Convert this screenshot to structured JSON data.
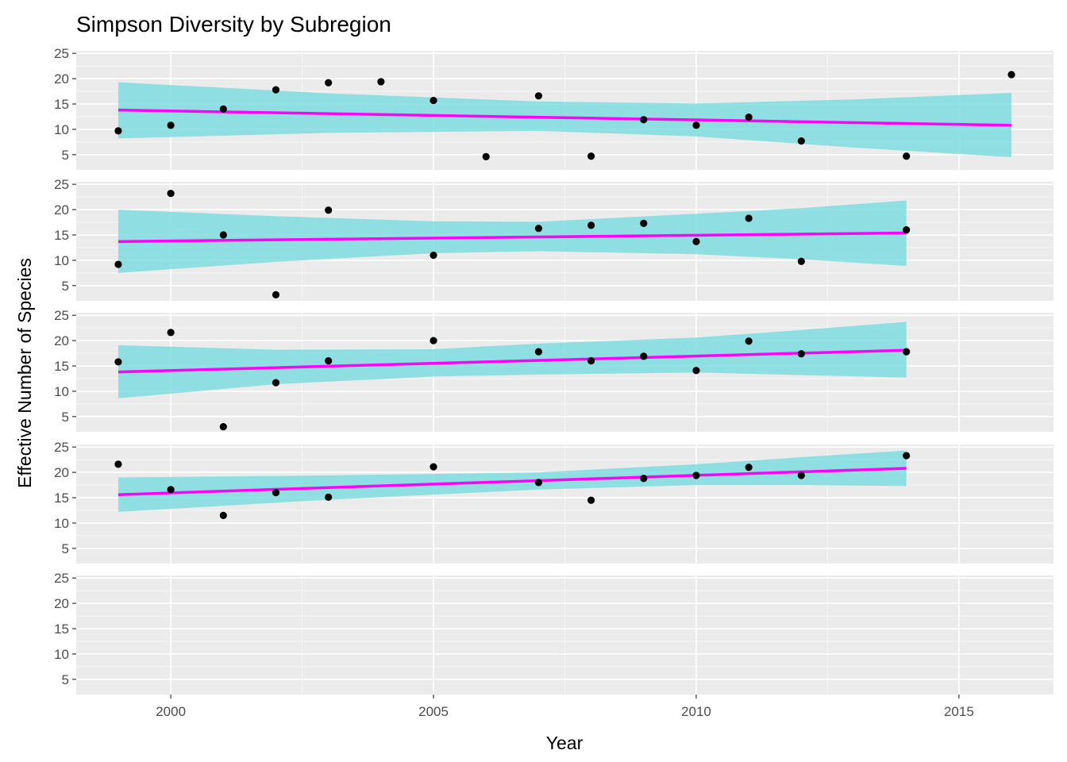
{
  "chart_data": {
    "type": "scatter",
    "title": "Simpson Diversity by Subregion",
    "xlabel": "Year",
    "ylabel": "Effective Number of Species",
    "xlim": [
      1998.2,
      2016.8
    ],
    "ylim": [
      2,
      25.5
    ],
    "x_ticks": [
      2000,
      2005,
      2010,
      2015
    ],
    "y_ticks": [
      5,
      10,
      15,
      20,
      25
    ],
    "grid": true,
    "colors": {
      "panel_background": "#EBEBEB",
      "grid": "#FFFFFF",
      "points": "#000000",
      "trend_line": "#FF00FF",
      "confidence_band": "#7FDDE0"
    },
    "panels": [
      {
        "points": [
          [
            1999,
            9.7
          ],
          [
            2000,
            10.8
          ],
          [
            2001,
            14.0
          ],
          [
            2002,
            17.8
          ],
          [
            2003,
            19.2
          ],
          [
            2004,
            19.4
          ],
          [
            2005,
            15.7
          ],
          [
            2006,
            4.6
          ],
          [
            2007,
            16.6
          ],
          [
            2008,
            4.7
          ],
          [
            2009,
            11.9
          ],
          [
            2010,
            10.8
          ],
          [
            2011,
            12.4
          ],
          [
            2012,
            7.7
          ],
          [
            2014,
            4.7
          ],
          [
            2016,
            20.8
          ]
        ],
        "trend": {
          "x": [
            1999,
            2016
          ],
          "y": [
            13.8,
            10.8
          ]
        },
        "band": [
          [
            1999,
            8.2,
            19.3
          ],
          [
            2003,
            9.3,
            17.1
          ],
          [
            2007,
            9.7,
            15.5
          ],
          [
            2010,
            8.6,
            15.1
          ],
          [
            2013,
            6.4,
            15.9
          ],
          [
            2016,
            4.5,
            17.2
          ]
        ]
      },
      {
        "points": [
          [
            1999,
            9.2
          ],
          [
            2000,
            23.2
          ],
          [
            2001,
            15.0
          ],
          [
            2002,
            3.2
          ],
          [
            2003,
            19.9
          ],
          [
            2005,
            11.0
          ],
          [
            2007,
            16.3
          ],
          [
            2008,
            16.9
          ],
          [
            2009,
            17.3
          ],
          [
            2010,
            13.7
          ],
          [
            2011,
            18.3
          ],
          [
            2012,
            9.8
          ],
          [
            2014,
            16.0
          ]
        ],
        "trend": {
          "x": [
            1999,
            2014
          ],
          "y": [
            13.7,
            15.4
          ]
        },
        "band": [
          [
            1999,
            7.5,
            20.0
          ],
          [
            2002,
            9.7,
            18.7
          ],
          [
            2005,
            11.4,
            17.7
          ],
          [
            2007,
            11.8,
            17.6
          ],
          [
            2010,
            11.2,
            19.2
          ],
          [
            2012,
            10.2,
            20.3
          ],
          [
            2014,
            8.9,
            21.8
          ]
        ]
      },
      {
        "points": [
          [
            1999,
            15.8
          ],
          [
            2000,
            21.6
          ],
          [
            2001,
            3.0
          ],
          [
            2002,
            11.7
          ],
          [
            2003,
            16.0
          ],
          [
            2005,
            20.0
          ],
          [
            2007,
            17.8
          ],
          [
            2008,
            16.0
          ],
          [
            2009,
            16.9
          ],
          [
            2010,
            14.1
          ],
          [
            2011,
            19.9
          ],
          [
            2012,
            17.4
          ],
          [
            2014,
            17.8
          ]
        ],
        "trend": {
          "x": [
            1999,
            2014
          ],
          "y": [
            13.8,
            18.1
          ]
        },
        "band": [
          [
            1999,
            8.6,
            19.1
          ],
          [
            2002,
            11.4,
            18.2
          ],
          [
            2005,
            12.9,
            18.3
          ],
          [
            2007,
            13.3,
            19.4
          ],
          [
            2010,
            13.7,
            20.6
          ],
          [
            2012,
            13.2,
            22.1
          ],
          [
            2014,
            12.7,
            23.7
          ]
        ]
      },
      {
        "points": [
          [
            1999,
            21.6
          ],
          [
            2000,
            16.6
          ],
          [
            2001,
            11.5
          ],
          [
            2002,
            16.0
          ],
          [
            2003,
            15.1
          ],
          [
            2005,
            21.1
          ],
          [
            2007,
            18.0
          ],
          [
            2008,
            14.5
          ],
          [
            2009,
            18.8
          ],
          [
            2010,
            19.4
          ],
          [
            2011,
            21.0
          ],
          [
            2012,
            19.4
          ],
          [
            2014,
            23.3
          ]
        ],
        "trend": {
          "x": [
            1999,
            2014
          ],
          "y": [
            15.6,
            20.8
          ]
        },
        "band": [
          [
            1999,
            12.2,
            19.0
          ],
          [
            2003,
            14.6,
            19.4
          ],
          [
            2007,
            16.6,
            20.0
          ],
          [
            2010,
            17.5,
            21.6
          ],
          [
            2012,
            17.5,
            23.0
          ],
          [
            2014,
            17.3,
            24.3
          ]
        ]
      },
      {
        "points": [],
        "trend": null,
        "band": []
      }
    ]
  }
}
